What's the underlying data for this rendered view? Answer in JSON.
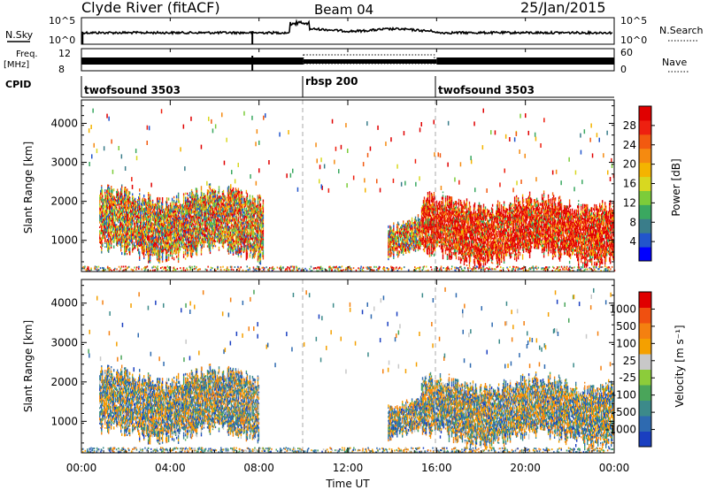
{
  "header": {
    "station": "Clyde River (fitACF)",
    "beam": "Beam 04",
    "date": "25/Jan/2015"
  },
  "top_panels": {
    "nsky_label": "N.Sky",
    "nsky_ticks": [
      "10^5",
      "10^0"
    ],
    "nsearch_label": "N.Search",
    "nsearch_ticks": [
      "10^5",
      "10^0"
    ],
    "freq_label_1": "Freq.",
    "freq_label_2": "[MHz]",
    "freq_ticks": [
      "12",
      "8"
    ],
    "nave_label": "Nave",
    "nave_ticks": [
      "60",
      "0"
    ],
    "cpid_label": "CPID",
    "cpid_segments": [
      {
        "name": "twofsound 3503",
        "start_h": 0,
        "end_h": 10
      },
      {
        "name": "rbsp 200",
        "start_h": 10,
        "end_h": 16
      },
      {
        "name": "twofsound 3503",
        "start_h": 16,
        "end_h": 24
      }
    ]
  },
  "chart_data": [
    {
      "type": "heatmap",
      "name": "power",
      "ylabel": "Slant Range [km]",
      "xlim": [
        0,
        24
      ],
      "ylim": [
        200,
        4600
      ],
      "yticks": [
        "1000",
        "2000",
        "3000",
        "4000"
      ],
      "colorbar_label": "Power [dB]",
      "colorbar_ticks": [
        "4",
        "8",
        "12",
        "16",
        "20",
        "24",
        "28"
      ],
      "colorbar_colors": [
        "#0000ff",
        "#2255cc",
        "#3a7d8a",
        "#3aa860",
        "#7ccc3a",
        "#d8d820",
        "#f4b400",
        "#f58a10",
        "#f25a10",
        "#ee2010",
        "#e00000"
      ],
      "scatter_regions": [
        {
          "t0": 0.8,
          "t1": 8.2,
          "r0": 500,
          "r1": 2300,
          "palette": "power-mixed"
        },
        {
          "t0": 13.8,
          "t1": 15.3,
          "r0": 600,
          "r1": 1500,
          "palette": "power-mixed"
        },
        {
          "t0": 15.3,
          "t1": 24,
          "r0": 400,
          "r1": 2100,
          "palette": "power-hot"
        }
      ]
    },
    {
      "type": "heatmap",
      "name": "velocity",
      "xlabel": "Time UT",
      "xlim": [
        0,
        24
      ],
      "ylim": [
        200,
        4600
      ],
      "xticks": [
        "00:00",
        "04:00",
        "08:00",
        "12:00",
        "16:00",
        "20:00",
        "00:00"
      ],
      "yticks": [
        "1000",
        "2000",
        "3000",
        "4000"
      ],
      "colorbar_label": "Velocity [m s⁻¹]",
      "colorbar_ticks": [
        "1000",
        "500",
        "100",
        "25",
        "-25",
        "-100",
        "-500",
        "-1000"
      ],
      "colorbar_colors": [
        "#1a3fc0",
        "#2e6ab0",
        "#3c8a8a",
        "#4aa55a",
        "#8ccc3a",
        "#c8c8c8",
        "#f4a000",
        "#f48010",
        "#f05010",
        "#e00000"
      ],
      "scatter_regions": [
        {
          "t0": 0.8,
          "t1": 8.0,
          "r0": 500,
          "r1": 2300,
          "palette": "vel-mixed"
        },
        {
          "t0": 13.8,
          "t1": 15.3,
          "r0": 600,
          "r1": 1500,
          "palette": "vel-mixed"
        },
        {
          "t0": 15.3,
          "t1": 24,
          "r0": 400,
          "r1": 2100,
          "palette": "vel-mixed"
        }
      ]
    }
  ]
}
